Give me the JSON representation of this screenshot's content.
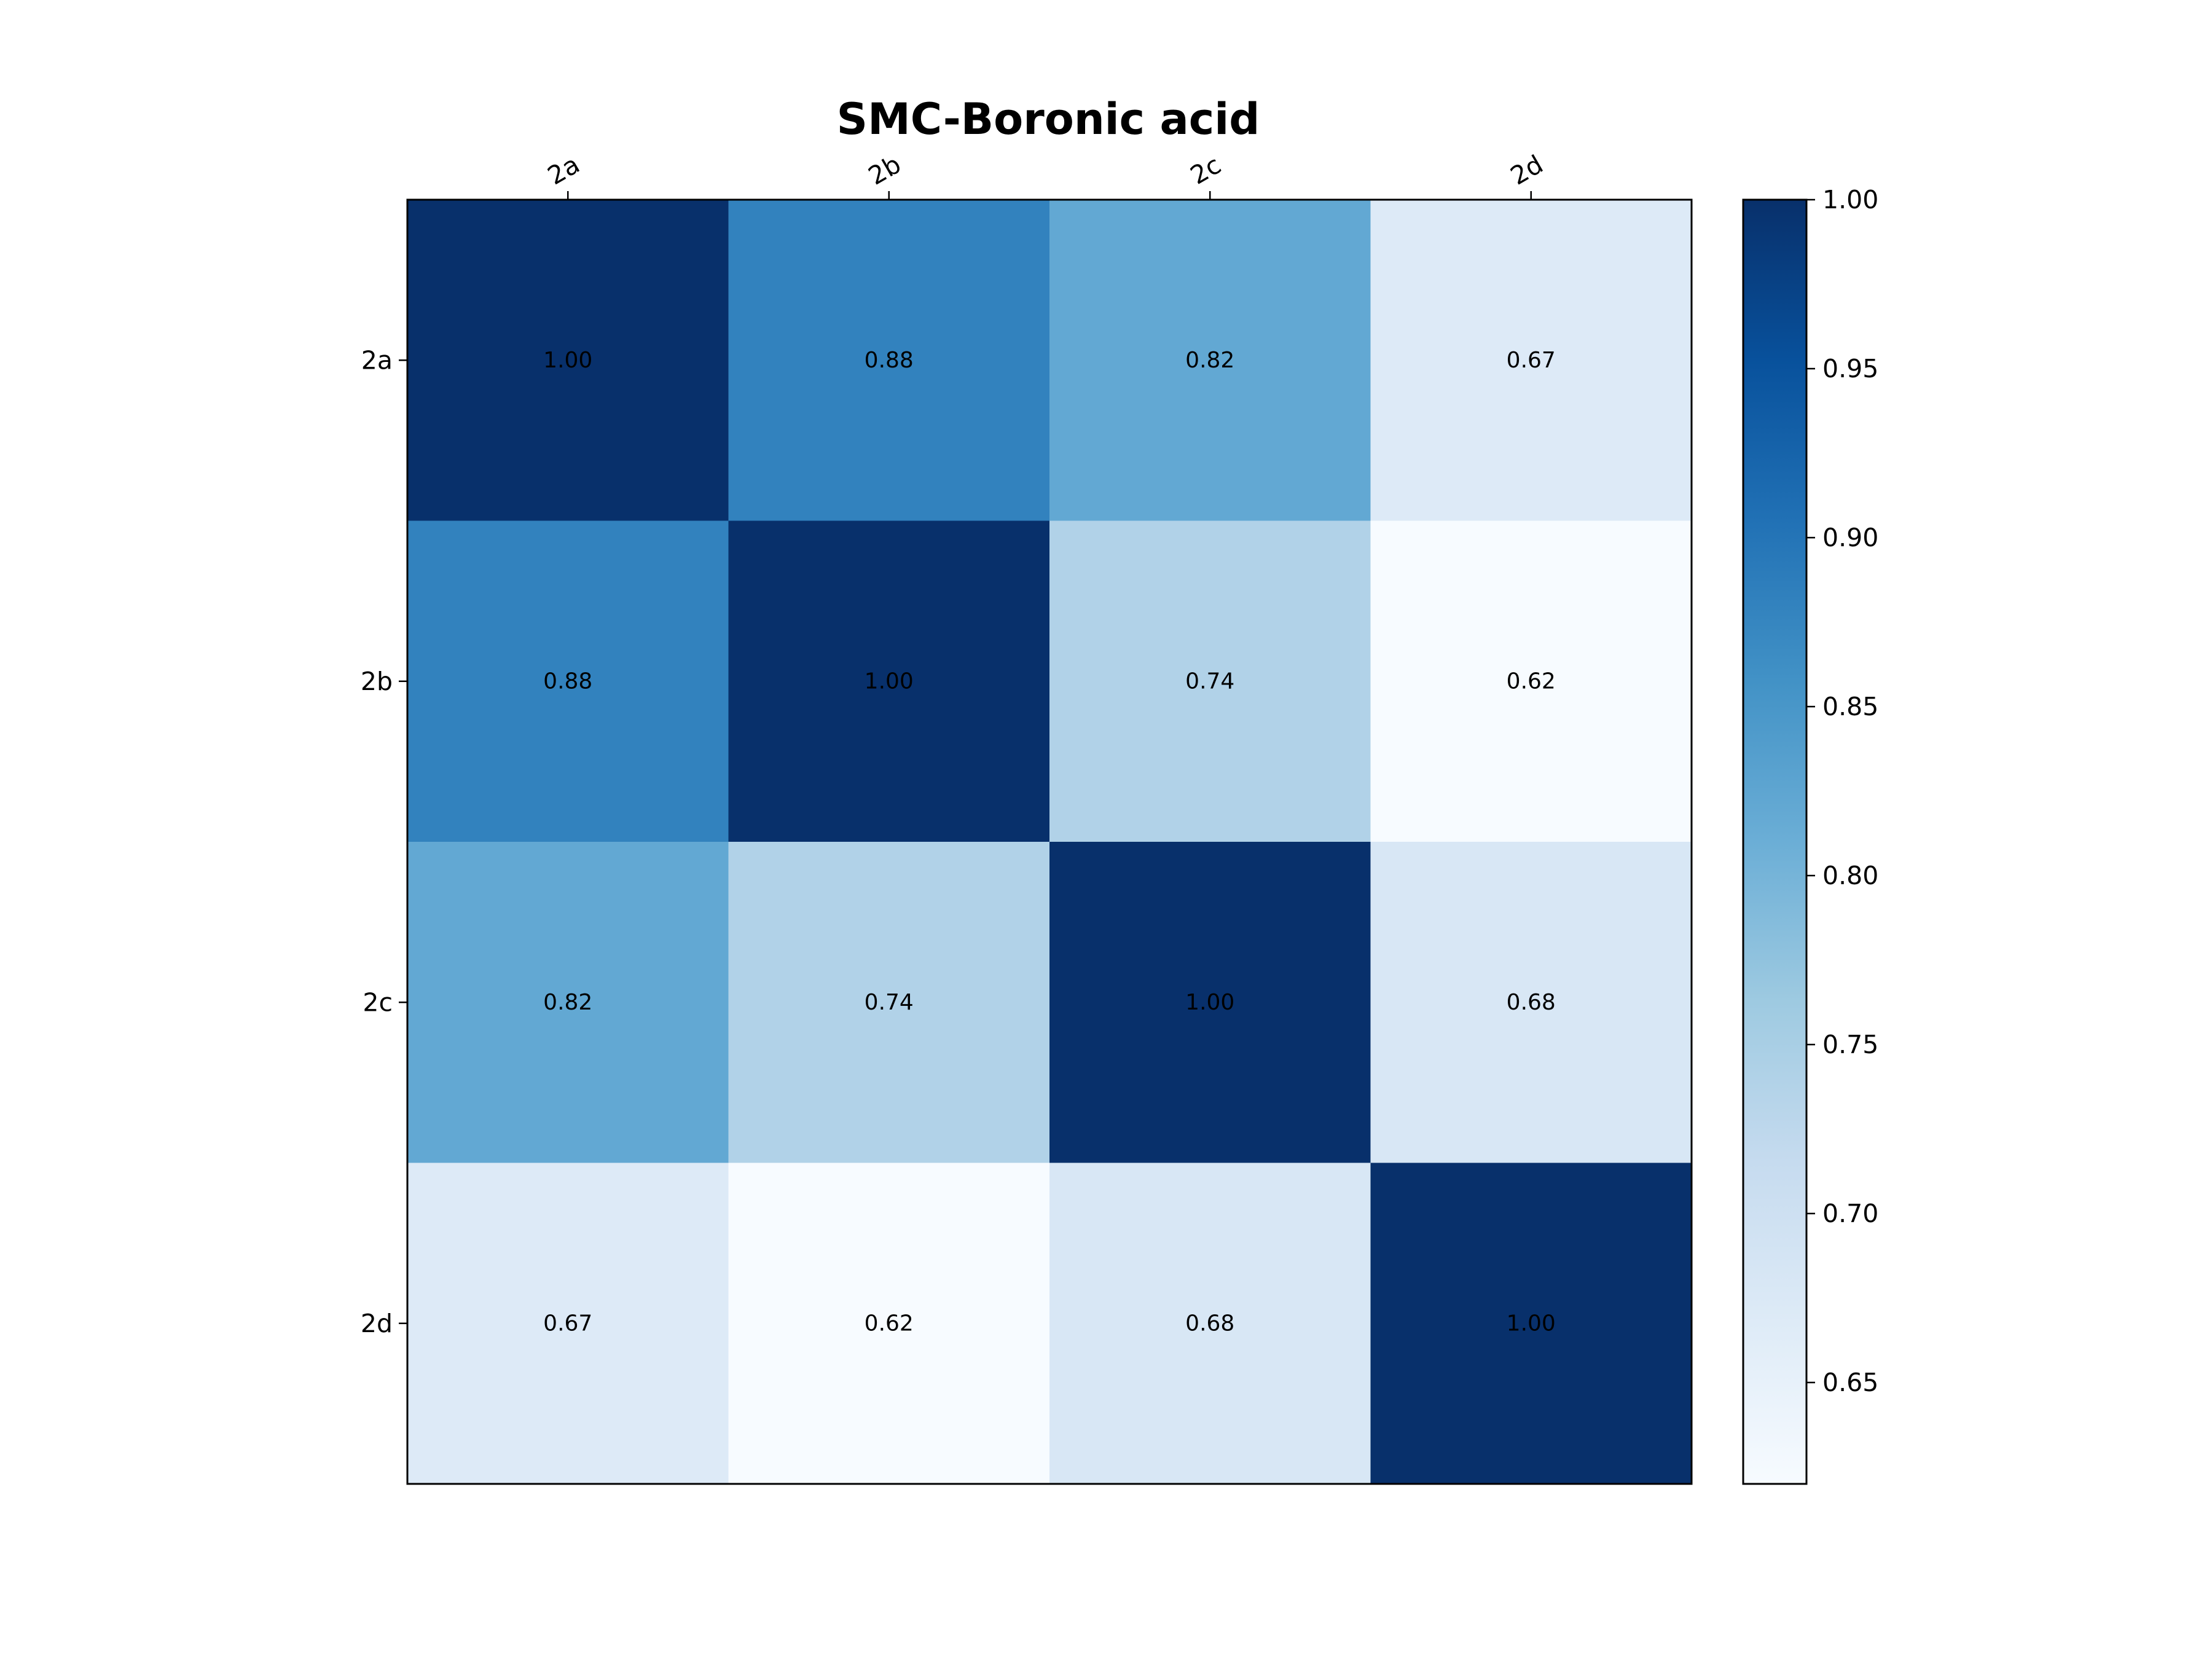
{
  "chart_data": {
    "type": "heatmap",
    "title": "SMC-Boronic acid",
    "xlabel": "",
    "ylabel": "",
    "x_categories": [
      "2a",
      "2b",
      "2c",
      "2d"
    ],
    "y_categories": [
      "2a",
      "2b",
      "2c",
      "2d"
    ],
    "x_tick_position": "top",
    "x_tick_rotation_deg": 30,
    "values": [
      [
        1.0,
        0.88,
        0.82,
        0.67
      ],
      [
        0.88,
        1.0,
        0.74,
        0.62
      ],
      [
        0.82,
        0.74,
        1.0,
        0.68
      ],
      [
        0.67,
        0.62,
        0.68,
        1.0
      ]
    ],
    "cell_value_format": "2 decimals",
    "colormap": "Blues",
    "colormap_stops": [
      "#f7fbff",
      "#deebf7",
      "#c6dbef",
      "#9ecae1",
      "#6baed6",
      "#4292c6",
      "#2171b5",
      "#08519c",
      "#08306b"
    ],
    "value_range": [
      0.62,
      1.0
    ],
    "colorbar": {
      "position": "right",
      "ticks": [
        0.65,
        0.7,
        0.75,
        0.8,
        0.85,
        0.9,
        0.95,
        1.0
      ],
      "tick_labels": [
        "0.65",
        "0.70",
        "0.75",
        "0.80",
        "0.85",
        "0.90",
        "0.95",
        "1.00"
      ]
    },
    "grid": false
  }
}
